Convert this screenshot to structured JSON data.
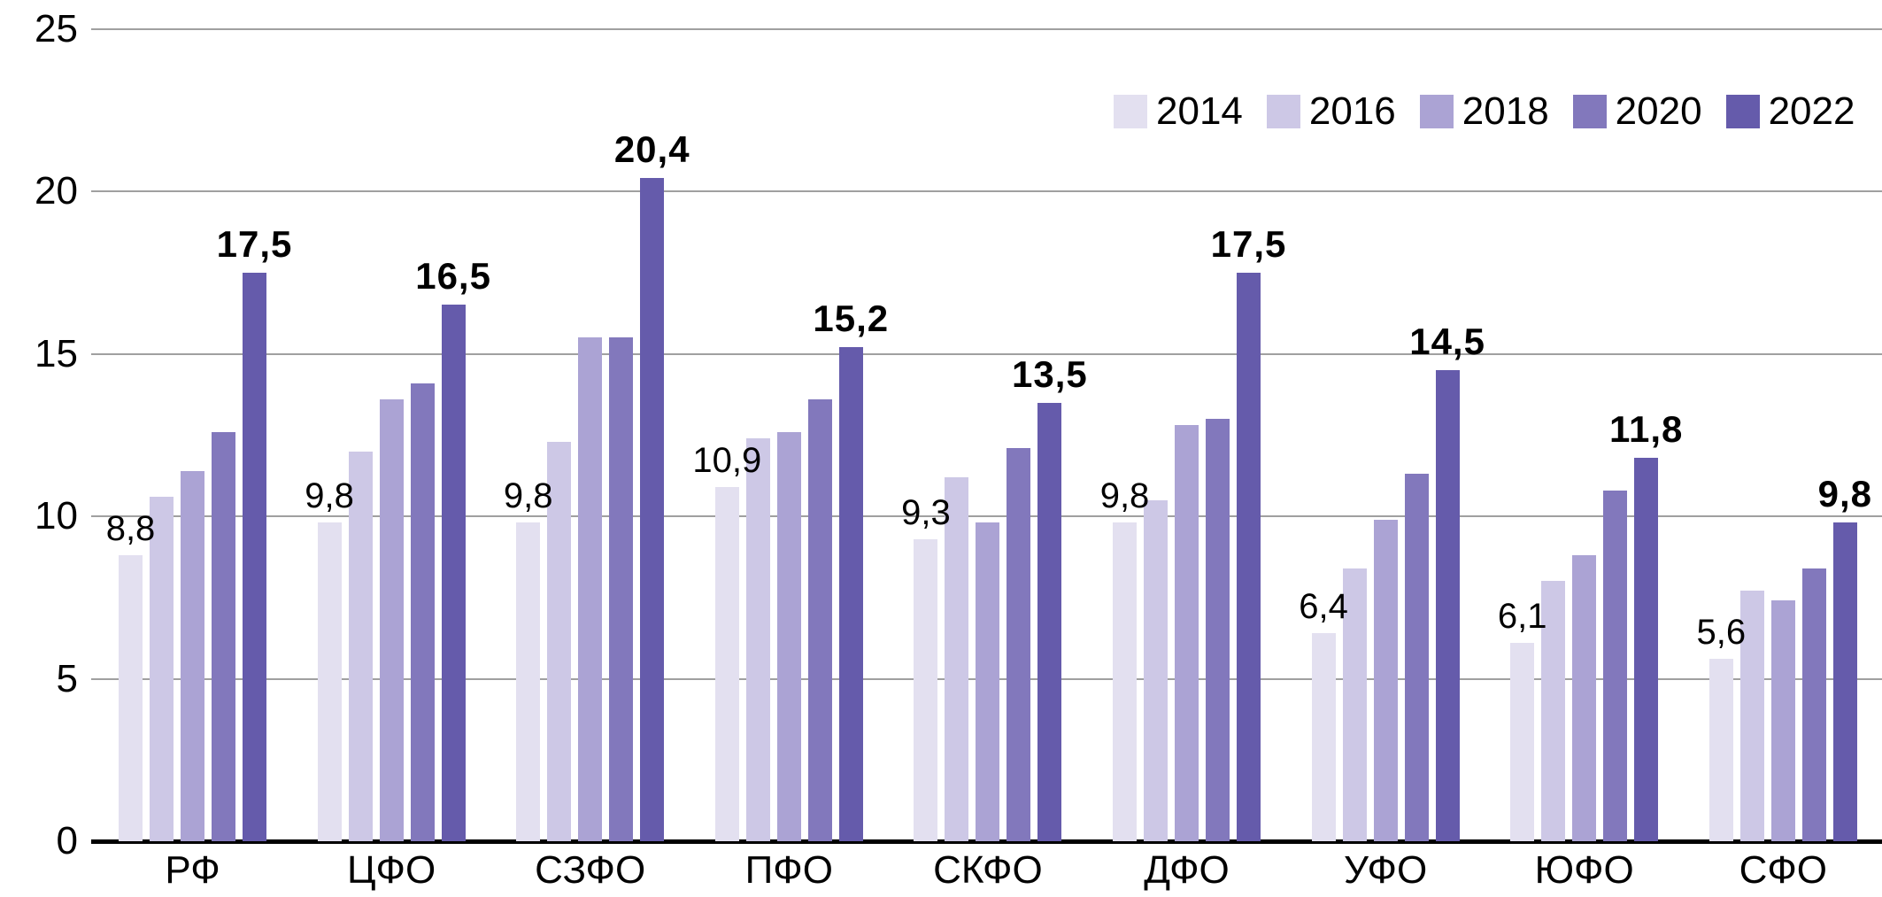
{
  "chart_data": {
    "type": "bar",
    "title": "",
    "xlabel": "",
    "ylabel": "",
    "categories": [
      "РФ",
      "ЦФО",
      "СЗФО",
      "ПФО",
      "СКФО",
      "ДФО",
      "УФО",
      "ЮФО",
      "СФО"
    ],
    "series": [
      {
        "name": "2014",
        "color": "#E3E0F0",
        "values": [
          8.8,
          9.8,
          9.8,
          10.9,
          9.3,
          9.8,
          6.4,
          6.1,
          5.6
        ]
      },
      {
        "name": "2016",
        "color": "#CDC8E6",
        "values": [
          10.6,
          12.0,
          12.3,
          12.4,
          11.2,
          10.5,
          8.4,
          8.0,
          7.7
        ]
      },
      {
        "name": "2018",
        "color": "#ABA3D4",
        "values": [
          11.4,
          13.6,
          15.5,
          12.6,
          9.8,
          12.8,
          9.9,
          8.8,
          7.4
        ]
      },
      {
        "name": "2020",
        "color": "#8278BC",
        "values": [
          12.6,
          14.1,
          15.5,
          13.6,
          12.1,
          13.0,
          11.3,
          10.8,
          8.4
        ]
      },
      {
        "name": "2022",
        "color": "#655BAB",
        "values": [
          17.5,
          16.5,
          20.4,
          15.2,
          13.5,
          17.5,
          14.5,
          11.8,
          9.8
        ]
      }
    ],
    "data_labels": {
      "first_series": [
        "8,8",
        "9,8",
        "9,8",
        "10,9",
        "9,3",
        "9,8",
        "6,4",
        "6,1",
        "5,6"
      ],
      "last_series": [
        "17,5",
        "16,5",
        "20,4",
        "15,2",
        "13,5",
        "17,5",
        "14,5",
        "11,8",
        "9,8"
      ]
    },
    "y_axis": {
      "min": 0,
      "max": 25,
      "ticks": [
        0,
        5,
        10,
        15,
        20,
        25
      ]
    },
    "legend": {
      "position": "top-right",
      "entries": [
        "2014",
        "2016",
        "2018",
        "2020",
        "2022"
      ]
    },
    "grid": true,
    "axis_color": "#000000",
    "gridline_color": "#a0a0a0"
  }
}
